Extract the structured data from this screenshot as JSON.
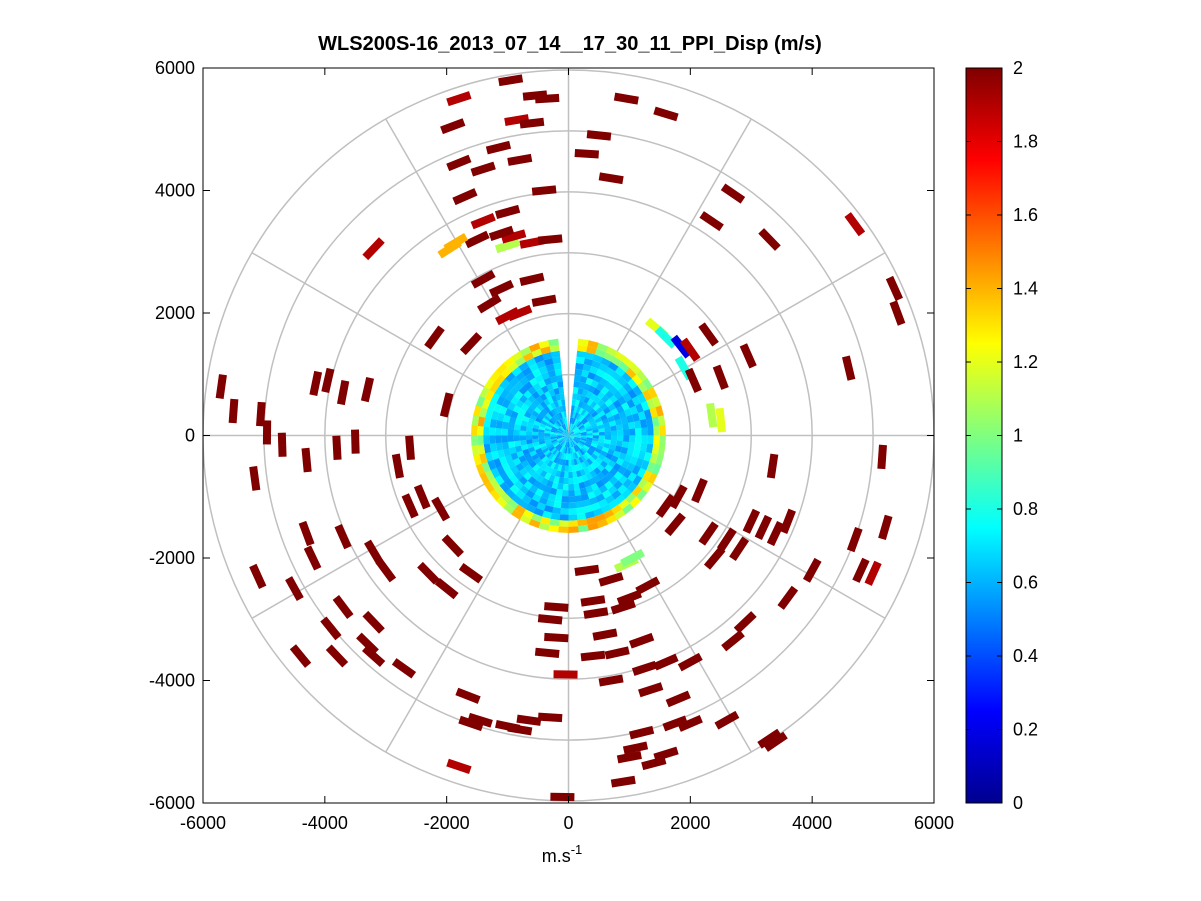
{
  "chart_data": {
    "type": "heatmap",
    "subtype": "polar-ppi",
    "title": "WLS200S-16_2013_07_14__17_30_11_PPI_Disp (m/s)",
    "xlabel_base": "m.s",
    "xlabel_exponent": "-1",
    "ylabel": "",
    "xlim": [
      -6000,
      6000
    ],
    "ylim": [
      -6000,
      6000
    ],
    "xticks": [
      -6000,
      -4000,
      -2000,
      0,
      2000,
      4000,
      6000
    ],
    "xtick_labels": [
      "-6000",
      "-4000",
      "-2000",
      "0",
      "2000",
      "4000",
      "6000"
    ],
    "yticks": [
      6000,
      4000,
      2000,
      0,
      -2000,
      -4000,
      -6000
    ],
    "ytick_labels": [
      "6000",
      "4000",
      "2000",
      "0",
      "-2000",
      "-4000",
      "-6000"
    ],
    "grid_circles_radius": [
      1000,
      2000,
      3000,
      4000,
      5000,
      6000
    ],
    "grid_spokes_deg": [
      0,
      30,
      60,
      90,
      120,
      150,
      180,
      210,
      240,
      270,
      300,
      330
    ],
    "colorbar": {
      "min": 0,
      "max": 2,
      "ticks": [
        0,
        0.2,
        0.4,
        0.6,
        0.8,
        1,
        1.2,
        1.4,
        1.6,
        1.8,
        2
      ],
      "tick_labels": [
        "0",
        "0.2",
        "0.4",
        "0.6",
        "0.8",
        "1",
        "1.2",
        "1.4",
        "1.6",
        "1.8",
        "2"
      ],
      "colormap": "jet"
    },
    "dense_region": {
      "max_range": 1600,
      "typical_value": 0.65,
      "edge_value": 1.1,
      "outer_value": 1.9
    },
    "segments": [
      [
        -1800,
        5500,
        1.9
      ],
      [
        -950,
        5800,
        2
      ],
      [
        -550,
        5550,
        2
      ],
      [
        -350,
        5500,
        2
      ],
      [
        -1900,
        5050,
        2
      ],
      [
        -850,
        5150,
        1.9
      ],
      [
        -600,
        5100,
        2
      ],
      [
        950,
        5500,
        2
      ],
      [
        1600,
        5250,
        2
      ],
      [
        500,
        4900,
        2
      ],
      [
        -1800,
        4450,
        2
      ],
      [
        -1150,
        4700,
        2
      ],
      [
        -800,
        4500,
        2
      ],
      [
        -1400,
        4350,
        2
      ],
      [
        -400,
        4000,
        2
      ],
      [
        300,
        4600,
        2
      ],
      [
        700,
        4200,
        2
      ],
      [
        -1700,
        3900,
        2
      ],
      [
        -1000,
        3650,
        2
      ],
      [
        -1400,
        3500,
        1.9
      ],
      [
        -1500,
        3200,
        2
      ],
      [
        -1850,
        3150,
        1.4
      ],
      [
        -1000,
        3100,
        1.1
      ],
      [
        -600,
        3150,
        1.9
      ],
      [
        -300,
        3200,
        2
      ],
      [
        -3200,
        3050,
        1.9
      ],
      [
        4700,
        3450,
        1.9
      ],
      [
        2700,
        3950,
        2
      ],
      [
        2350,
        3500,
        2
      ],
      [
        3300,
        3200,
        2
      ],
      [
        5350,
        2400,
        2
      ],
      [
        5400,
        2000,
        2
      ],
      [
        -1400,
        2550,
        2
      ],
      [
        -1100,
        2400,
        2
      ],
      [
        -600,
        2550,
        2
      ],
      [
        -400,
        2200,
        2
      ],
      [
        -1300,
        2150,
        2
      ],
      [
        -800,
        2000,
        1.9
      ],
      [
        -2200,
        1600,
        2
      ],
      [
        -1600,
        1500,
        2
      ],
      [
        1450,
        1750,
        1.2
      ],
      [
        1600,
        1600,
        0.8
      ],
      [
        1850,
        1450,
        0.2
      ],
      [
        2000,
        1400,
        1.9
      ],
      [
        2300,
        1650,
        2
      ],
      [
        2950,
        1300,
        2
      ],
      [
        1900,
        1100,
        0.8
      ],
      [
        2050,
        900,
        2
      ],
      [
        2500,
        950,
        2
      ],
      [
        4600,
        1100,
        2
      ],
      [
        2350,
        330,
        1.1
      ],
      [
        2500,
        250,
        1.2
      ],
      [
        -5700,
        800,
        2
      ],
      [
        -5500,
        400,
        2
      ],
      [
        -5050,
        350,
        2
      ],
      [
        -4950,
        50,
        2
      ],
      [
        -4150,
        850,
        2
      ],
      [
        -3950,
        900,
        2
      ],
      [
        -3700,
        700,
        2
      ],
      [
        -3300,
        750,
        2
      ],
      [
        -4700,
        -150,
        2
      ],
      [
        -3800,
        -200,
        2
      ],
      [
        -3500,
        -100,
        2
      ],
      [
        -4300,
        -400,
        2
      ],
      [
        -5150,
        -700,
        2
      ],
      [
        -2800,
        -500,
        2
      ],
      [
        -2400,
        -1000,
        2
      ],
      [
        -2600,
        -1150,
        2
      ],
      [
        -2100,
        -1200,
        2
      ],
      [
        -4300,
        -1600,
        2
      ],
      [
        -3700,
        -1650,
        2
      ],
      [
        -3200,
        -1900,
        2
      ],
      [
        -4200,
        -2000,
        2
      ],
      [
        -3000,
        -2200,
        2
      ],
      [
        -2300,
        -2250,
        2
      ],
      [
        -2000,
        -2500,
        2
      ],
      [
        -5100,
        -2300,
        2
      ],
      [
        -4500,
        -2500,
        2
      ],
      [
        -3700,
        -2800,
        2
      ],
      [
        -3200,
        -3050,
        2
      ],
      [
        -3900,
        -3150,
        2
      ],
      [
        -3300,
        -3400,
        2
      ],
      [
        -4400,
        -3600,
        2
      ],
      [
        -3800,
        -3600,
        2
      ],
      [
        -3200,
        -3600,
        2
      ],
      [
        -2700,
        -3800,
        2
      ],
      [
        -1650,
        -4250,
        2
      ],
      [
        -1450,
        -4650,
        2
      ],
      [
        -650,
        -4650,
        2
      ],
      [
        -1800,
        -5400,
        1.9
      ],
      [
        -1600,
        -4700,
        2
      ],
      [
        -1000,
        -4750,
        2
      ],
      [
        -800,
        -4800,
        2
      ],
      [
        -300,
        -4600,
        2
      ],
      [
        -50,
        -3900,
        1.9
      ],
      [
        -200,
        -3300,
        2
      ],
      [
        -300,
        -3000,
        2
      ],
      [
        -200,
        -2800,
        2
      ],
      [
        -350,
        -3550,
        2
      ],
      [
        -100,
        -5900,
        2
      ],
      [
        400,
        -2700,
        2
      ],
      [
        450,
        -2900,
        2
      ],
      [
        900,
        -2800,
        2
      ],
      [
        1000,
        -2650,
        2
      ],
      [
        1300,
        -2450,
        2
      ],
      [
        700,
        -2350,
        2
      ],
      [
        300,
        -2200,
        2
      ],
      [
        950,
        -2100,
        1.1
      ],
      [
        1050,
        -2000,
        1
      ],
      [
        600,
        -3250,
        2
      ],
      [
        1200,
        -3350,
        2
      ],
      [
        800,
        -3550,
        2
      ],
      [
        400,
        -3600,
        2
      ],
      [
        1250,
        -3800,
        2
      ],
      [
        1600,
        -3700,
        2
      ],
      [
        2000,
        -3700,
        2
      ],
      [
        700,
        -4000,
        2
      ],
      [
        1350,
        -4150,
        2
      ],
      [
        1800,
        -4300,
        2
      ],
      [
        1750,
        -4700,
        2
      ],
      [
        2000,
        -4700,
        2
      ],
      [
        2600,
        -4650,
        2
      ],
      [
        1200,
        -4850,
        2
      ],
      [
        1100,
        -5100,
        2
      ],
      [
        1600,
        -5200,
        2
      ],
      [
        1000,
        -5250,
        2
      ],
      [
        1400,
        -5350,
        2
      ],
      [
        900,
        -5650,
        2
      ],
      [
        3400,
        -5000,
        2
      ],
      [
        3300,
        -4950,
        2
      ],
      [
        2700,
        -3350,
        2
      ],
      [
        2900,
        -3050,
        2
      ],
      [
        3600,
        -2650,
        2
      ],
      [
        4000,
        -2200,
        2
      ],
      [
        4800,
        -2200,
        2
      ],
      [
        5000,
        -2250,
        1.9
      ],
      [
        4700,
        -1700,
        2
      ],
      [
        5200,
        -1500,
        2
      ],
      [
        3200,
        -1500,
        2
      ],
      [
        3400,
        -1600,
        2
      ],
      [
        3600,
        -1400,
        2
      ],
      [
        3000,
        -1400,
        2
      ],
      [
        5150,
        -350,
        2
      ],
      [
        3350,
        -500,
        2
      ],
      [
        1750,
        -1450,
        2
      ],
      [
        1600,
        -1150,
        2
      ],
      [
        1800,
        -1000,
        2
      ],
      [
        2150,
        -900,
        2
      ],
      [
        2300,
        -1600,
        2
      ],
      [
        2600,
        -1700,
        2
      ],
      [
        2400,
        -2000,
        2
      ],
      [
        2800,
        -1850,
        2
      ],
      [
        -1900,
        -1800,
        2
      ],
      [
        -1600,
        -2250,
        2
      ],
      [
        -2600,
        -200,
        2
      ],
      [
        -2000,
        500,
        2
      ],
      [
        -1000,
        1950,
        1.9
      ],
      [
        -900,
        3250,
        1.9
      ],
      [
        -1950,
        3050,
        1.4
      ],
      [
        -1100,
        3300,
        2
      ]
    ]
  }
}
